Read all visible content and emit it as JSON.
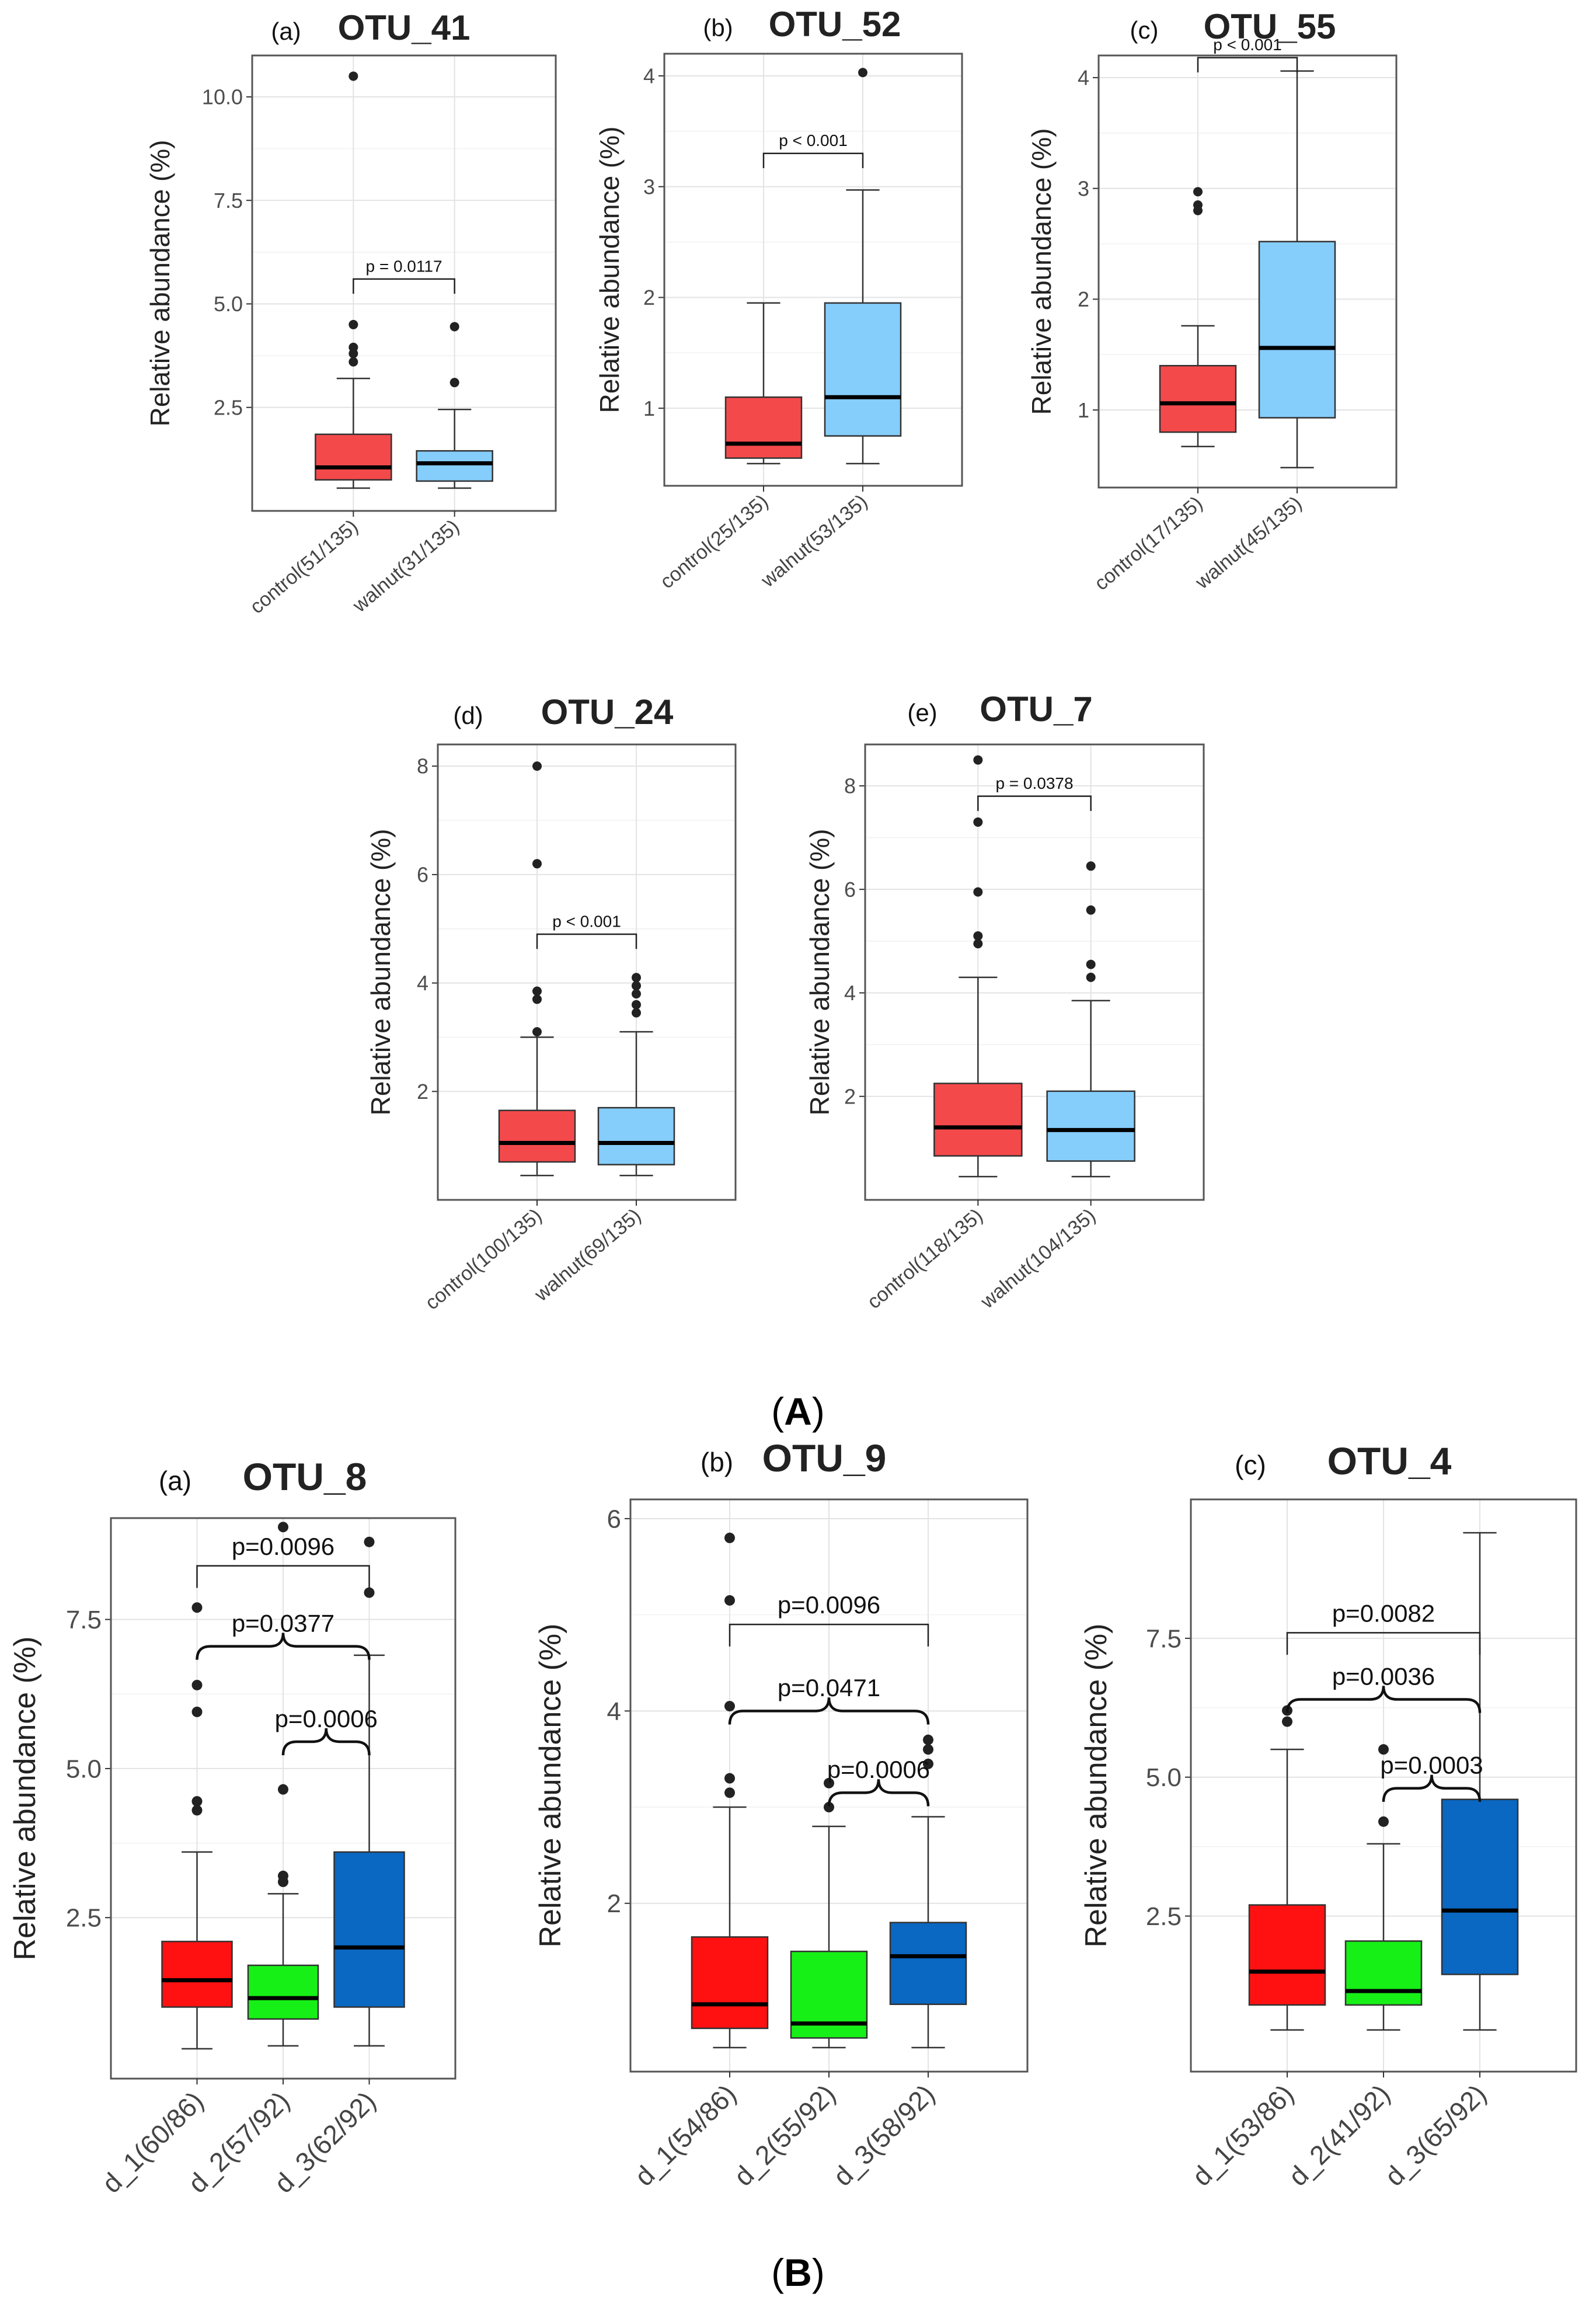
{
  "figure": {
    "section_A_label": "A",
    "section_B_label": "B"
  },
  "chart_data": [
    {
      "id": "A-a",
      "type": "boxplot",
      "panel_label": "(a)",
      "title": "OTU_41",
      "ylabel": "Relative abundance (%)",
      "ylim": [
        0.0,
        11.0
      ],
      "yticks": [
        2.5,
        5.0,
        7.5,
        10.0
      ],
      "ytick_labels": [
        "2.5",
        "5.0",
        "7.5",
        "10.0"
      ],
      "grid": true,
      "categories": [
        "control(51/135)",
        "walnut(31/135)"
      ],
      "colors": [
        "#f4494b",
        "#85cdfb"
      ],
      "boxes": [
        {
          "q1": 0.75,
          "median": 1.05,
          "q3": 1.85,
          "whisker_low": 0.55,
          "whisker_high": 3.2,
          "outliers": [
            3.6,
            3.8,
            3.95,
            4.5,
            10.5
          ]
        },
        {
          "q1": 0.72,
          "median": 1.15,
          "q3": 1.45,
          "whisker_low": 0.55,
          "whisker_high": 2.45,
          "outliers": [
            3.1,
            4.45
          ]
        }
      ],
      "comparisons": [
        {
          "groups": [
            0,
            1
          ],
          "label": "p = 0.0117",
          "y": 5.6,
          "style": "bracket"
        }
      ]
    },
    {
      "id": "A-b",
      "type": "boxplot",
      "panel_label": "(b)",
      "title": "OTU_52",
      "ylabel": "Relative abundance (%)",
      "ylim": [
        0.3,
        4.2
      ],
      "yticks": [
        1,
        2,
        3,
        4
      ],
      "ytick_labels": [
        "1",
        "2",
        "3",
        "4"
      ],
      "grid": true,
      "categories": [
        "control(25/135)",
        "walnut(53/135)"
      ],
      "colors": [
        "#f4494b",
        "#85cdfb"
      ],
      "boxes": [
        {
          "q1": 0.55,
          "median": 0.68,
          "q3": 1.1,
          "whisker_low": 0.5,
          "whisker_high": 1.95,
          "outliers": []
        },
        {
          "q1": 0.75,
          "median": 1.1,
          "q3": 1.95,
          "whisker_low": 0.5,
          "whisker_high": 2.97,
          "outliers": [
            4.03
          ]
        }
      ],
      "comparisons": [
        {
          "groups": [
            0,
            1
          ],
          "label": "p < 0.001",
          "y": 3.3,
          "style": "bracket"
        }
      ]
    },
    {
      "id": "A-c",
      "type": "boxplot",
      "panel_label": "(c)",
      "title": "OTU_55",
      "ylabel": "Relative abundance (%)",
      "ylim": [
        0.3,
        4.2
      ],
      "yticks": [
        1,
        2,
        3,
        4
      ],
      "ytick_labels": [
        "1",
        "2",
        "3",
        "4"
      ],
      "grid": true,
      "categories": [
        "control(17/135)",
        "walnut(45/135)"
      ],
      "colors": [
        "#f4494b",
        "#85cdfb"
      ],
      "boxes": [
        {
          "q1": 0.8,
          "median": 1.06,
          "q3": 1.4,
          "whisker_low": 0.67,
          "whisker_high": 1.76,
          "outliers": [
            2.8,
            2.85,
            2.97
          ]
        },
        {
          "q1": 0.93,
          "median": 1.56,
          "q3": 2.52,
          "whisker_low": 0.48,
          "whisker_high": 4.06,
          "outliers": []
        }
      ],
      "comparisons": [
        {
          "groups": [
            0,
            1
          ],
          "label": "p < 0.001",
          "y": 4.18,
          "style": "bracket"
        }
      ]
    },
    {
      "id": "A-d",
      "type": "boxplot",
      "panel_label": "(d)",
      "title": "OTU_24",
      "ylabel": "Relative abundance (%)",
      "ylim": [
        0.0,
        8.4
      ],
      "yticks": [
        2,
        4,
        6,
        8
      ],
      "ytick_labels": [
        "2",
        "4",
        "6",
        "8"
      ],
      "grid": true,
      "categories": [
        "control(100/135)",
        "walnut(69/135)"
      ],
      "colors": [
        "#f4494b",
        "#85cdfb"
      ],
      "boxes": [
        {
          "q1": 0.7,
          "median": 1.05,
          "q3": 1.65,
          "whisker_low": 0.45,
          "whisker_high": 3.0,
          "outliers": [
            3.1,
            3.7,
            3.85,
            6.2,
            8.0
          ]
        },
        {
          "q1": 0.65,
          "median": 1.05,
          "q3": 1.7,
          "whisker_low": 0.45,
          "whisker_high": 3.1,
          "outliers": [
            3.45,
            3.6,
            3.8,
            3.95,
            4.1
          ]
        }
      ],
      "comparisons": [
        {
          "groups": [
            0,
            1
          ],
          "label": "p < 0.001",
          "y": 4.9,
          "style": "bracket"
        }
      ]
    },
    {
      "id": "A-e",
      "type": "boxplot",
      "panel_label": "(e)",
      "title": "OTU_7",
      "ylabel": "Relative abundance (%)",
      "ylim": [
        0.0,
        8.8
      ],
      "yticks": [
        2,
        4,
        6,
        8
      ],
      "ytick_labels": [
        "2",
        "4",
        "6",
        "8"
      ],
      "grid": true,
      "categories": [
        "control(118/135)",
        "walnut(104/135)"
      ],
      "colors": [
        "#f4494b",
        "#85cdfb"
      ],
      "boxes": [
        {
          "q1": 0.85,
          "median": 1.4,
          "q3": 2.25,
          "whisker_low": 0.45,
          "whisker_high": 4.3,
          "outliers": [
            4.95,
            5.1,
            5.95,
            7.3,
            8.5
          ]
        },
        {
          "q1": 0.75,
          "median": 1.35,
          "q3": 2.1,
          "whisker_low": 0.45,
          "whisker_high": 3.85,
          "outliers": [
            4.3,
            4.55,
            5.6,
            6.45
          ]
        }
      ],
      "comparisons": [
        {
          "groups": [
            0,
            1
          ],
          "label": "p = 0.0378",
          "y": 7.8,
          "style": "bracket"
        }
      ]
    },
    {
      "id": "B-a",
      "type": "boxplot",
      "panel_label": "(a)",
      "title": "OTU_8",
      "ylabel": "Relative abundance (%)",
      "ylim": [
        -0.2,
        9.2
      ],
      "yticks": [
        2.5,
        5.0,
        7.5
      ],
      "ytick_labels": [
        "2.5",
        "5.0",
        "7.5"
      ],
      "grid": true,
      "categories": [
        "d_1(60/86)",
        "d_2(57/92)",
        "d_3(62/92)"
      ],
      "colors": [
        "#ff1111",
        "#16f016",
        "#0a67c2"
      ],
      "boxes": [
        {
          "q1": 1.0,
          "median": 1.45,
          "q3": 2.1,
          "whisker_low": 0.3,
          "whisker_high": 3.6,
          "outliers": [
            4.3,
            4.45,
            5.95,
            6.4,
            7.7
          ]
        },
        {
          "q1": 0.8,
          "median": 1.15,
          "q3": 1.7,
          "whisker_low": 0.35,
          "whisker_high": 2.9,
          "outliers": [
            3.1,
            3.2,
            4.65,
            9.05
          ]
        },
        {
          "q1": 1.0,
          "median": 2.0,
          "q3": 3.6,
          "whisker_low": 0.35,
          "whisker_high": 6.9,
          "outliers": [
            7.95,
            8.8
          ]
        }
      ],
      "comparisons": [
        {
          "groups": [
            0,
            2
          ],
          "label": "p=0.0096",
          "y": 8.4,
          "style": "bracket"
        },
        {
          "groups": [
            0,
            2
          ],
          "label": "p=0.0377",
          "y": 7.05,
          "style": "brace"
        },
        {
          "groups": [
            1,
            2
          ],
          "label": "p=0.0006",
          "y": 5.45,
          "style": "brace"
        }
      ]
    },
    {
      "id": "B-b",
      "type": "boxplot",
      "panel_label": "(b)",
      "title": "OTU_9",
      "ylabel": "Relative abundance (%)",
      "ylim": [
        0.25,
        6.2
      ],
      "yticks": [
        2,
        4,
        6
      ],
      "ytick_labels": [
        "2",
        "4",
        "6"
      ],
      "grid": true,
      "categories": [
        "d_1(54/86)",
        "d_2(55/92)",
        "d_3(58/92)"
      ],
      "colors": [
        "#ff1111",
        "#16f016",
        "#0a67c2"
      ],
      "boxes": [
        {
          "q1": 0.7,
          "median": 0.95,
          "q3": 1.65,
          "whisker_low": 0.5,
          "whisker_high": 3.0,
          "outliers": [
            3.15,
            3.3,
            4.05,
            5.15,
            5.8
          ]
        },
        {
          "q1": 0.6,
          "median": 0.75,
          "q3": 1.5,
          "whisker_low": 0.5,
          "whisker_high": 2.8,
          "outliers": [
            3.0,
            3.25
          ]
        },
        {
          "q1": 0.95,
          "median": 1.45,
          "q3": 1.8,
          "whisker_low": 0.5,
          "whisker_high": 2.9,
          "outliers": [
            3.45,
            3.6,
            3.7
          ]
        }
      ],
      "comparisons": [
        {
          "groups": [
            0,
            2
          ],
          "label": "p=0.0096",
          "y": 4.9,
          "style": "bracket"
        },
        {
          "groups": [
            0,
            2
          ],
          "label": "p=0.0471",
          "y": 4.0,
          "style": "brace"
        },
        {
          "groups": [
            1,
            2
          ],
          "label": "p=0.0006",
          "y": 3.15,
          "style": "brace"
        }
      ]
    },
    {
      "id": "B-c",
      "type": "boxplot",
      "panel_label": "(c)",
      "title": "OTU_4",
      "ylabel": "Relative abundance (%)",
      "ylim": [
        -0.3,
        10.0
      ],
      "yticks": [
        2.5,
        5.0,
        7.5
      ],
      "ytick_labels": [
        "2.5",
        "5.0",
        "7.5"
      ],
      "grid": true,
      "categories": [
        "d_1(53/86)",
        "d_2(41/92)",
        "d_3(65/92)"
      ],
      "colors": [
        "#ff1111",
        "#16f016",
        "#0a67c2"
      ],
      "boxes": [
        {
          "q1": 0.9,
          "median": 1.5,
          "q3": 2.7,
          "whisker_low": 0.45,
          "whisker_high": 5.5,
          "outliers": [
            6.0,
            6.2
          ]
        },
        {
          "q1": 0.9,
          "median": 1.15,
          "q3": 2.05,
          "whisker_low": 0.45,
          "whisker_high": 3.8,
          "outliers": [
            4.2,
            5.5
          ]
        },
        {
          "q1": 1.45,
          "median": 2.6,
          "q3": 4.6,
          "whisker_low": 0.45,
          "whisker_high": 9.4,
          "outliers": []
        }
      ],
      "comparisons": [
        {
          "groups": [
            0,
            2
          ],
          "label": "p=0.0082",
          "y": 7.6,
          "style": "bracket"
        },
        {
          "groups": [
            0,
            2
          ],
          "label": "p=0.0036",
          "y": 6.4,
          "style": "brace"
        },
        {
          "groups": [
            1,
            2
          ],
          "label": "p=0.0003",
          "y": 4.8,
          "style": "brace"
        }
      ]
    }
  ]
}
